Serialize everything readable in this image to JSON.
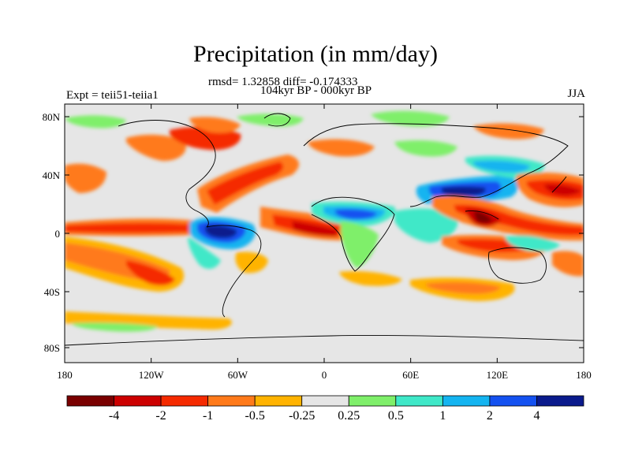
{
  "title": "Precipitation (in mm/day)",
  "stats": "rmsd= 1.32858 diff= -0.174333",
  "period": "104kyr BP - 000kyr BP",
  "expt": "Expt = teii51-teiia1",
  "season": "JJA",
  "lat_labels": [
    "80N",
    "40N",
    "0",
    "40S",
    "80S"
  ],
  "lon_labels": [
    "180",
    "120W",
    "60W",
    "0",
    "60E",
    "120E",
    "180"
  ],
  "colorbar": {
    "labels": [
      "-4",
      "-2",
      "-1",
      "-0.5",
      "-0.25",
      "0.25",
      "0.5",
      "1",
      "2",
      "4"
    ],
    "colors": [
      "#7a0000",
      "#cc0000",
      "#f52a00",
      "#ff7a1a",
      "#ffb300",
      "#e6e6e6",
      "#7fef6a",
      "#3fe8c8",
      "#14b4f0",
      "#1451f0",
      "#0a1a8c"
    ]
  },
  "palette": {
    "background": "#e6e6e6",
    "dark_red": "#7a0000",
    "red": "#cc0000",
    "orange_red": "#f52a00",
    "orange": "#ff7a1a",
    "yellow": "#ffb300",
    "green": "#7fef6a",
    "cyan": "#3fe8c8",
    "light_blue": "#14b4f0",
    "blue": "#1451f0",
    "dark_blue": "#0a1a8c"
  }
}
